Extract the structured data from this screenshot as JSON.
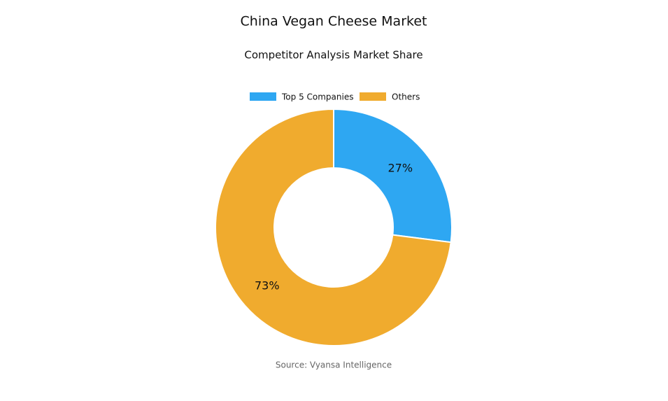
{
  "chart_data": {
    "type": "donut",
    "title": "China Vegan Cheese Market",
    "subtitle": "Competitor Analysis Market Share",
    "categories": [
      "Top 5 Companies",
      "Others"
    ],
    "values": [
      27,
      73
    ],
    "value_labels": [
      "27%",
      "73%"
    ],
    "colors": [
      "#2ea7f2",
      "#f0ab2e"
    ],
    "source": "Source: Vyansa Intelligence"
  }
}
